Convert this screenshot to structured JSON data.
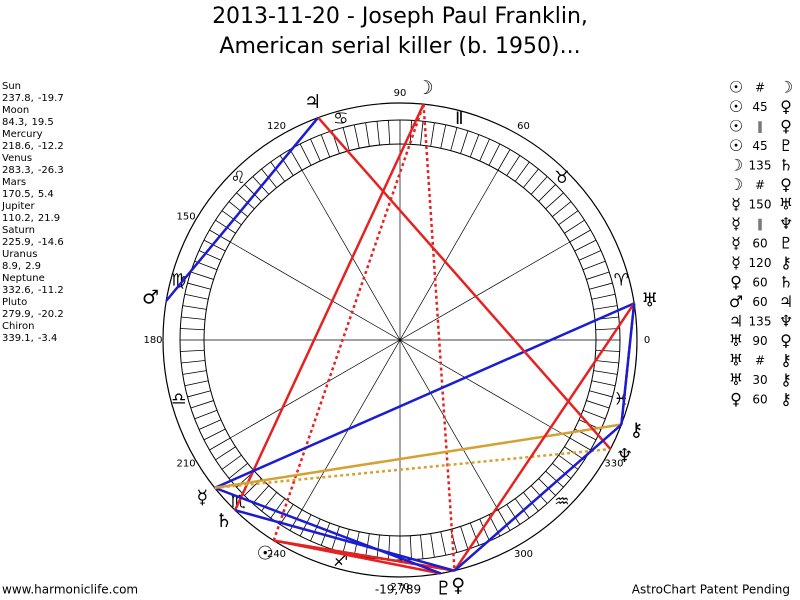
{
  "title": [
    "2013-11-20 - Joseph Paul Franklin,",
    "American serial killer (b. 1950)..."
  ],
  "planets": [
    {
      "name": "Sun",
      "glyph": "☉",
      "longitude": 237.8,
      "longitude_label": "237.8,",
      "latitude": -19.7
    },
    {
      "name": "Moon",
      "glyph": "☽",
      "longitude": 84.3,
      "longitude_label": "84.3,",
      "latitude": 19.5
    },
    {
      "name": "Mercury",
      "glyph": "☿",
      "longitude": 218.6,
      "longitude_label": "218.6,",
      "latitude": -12.2
    },
    {
      "name": "Venus",
      "glyph": "♀",
      "longitude": 283.3,
      "longitude_label": "283.3,",
      "latitude": -26.3
    },
    {
      "name": "Mars",
      "glyph": "♂",
      "longitude": 170.5,
      "longitude_label": "170.5,",
      "latitude": 5.4
    },
    {
      "name": "Jupiter",
      "glyph": "♃",
      "longitude": 110.2,
      "longitude_label": "110.2,",
      "latitude": 21.9
    },
    {
      "name": "Saturn",
      "glyph": "♄",
      "longitude": 225.9,
      "longitude_label": "225.9,",
      "latitude": -14.6
    },
    {
      "name": "Uranus",
      "glyph": "♅",
      "longitude": 8.9,
      "longitude_label": "8.9,",
      "latitude": 2.9
    },
    {
      "name": "Neptune",
      "glyph": "♆",
      "longitude": 332.6,
      "longitude_label": "332.6,",
      "latitude": -11.2
    },
    {
      "name": "Pluto",
      "glyph": "♇",
      "longitude": 279.9,
      "longitude_label": "279.9,",
      "latitude": -20.2
    },
    {
      "name": "Chiron",
      "glyph": "⚷",
      "longitude": 339.1,
      "longitude_label": "339.1,",
      "latitude": -3.4
    }
  ],
  "signs": [
    "♈",
    "♉",
    "Ⅱ",
    "♋",
    "♌",
    "♍",
    "♎",
    "♏",
    "♐",
    null,
    "♒",
    "♓"
  ],
  "degree_labels": [
    90,
    60,
    0,
    330,
    300,
    270,
    240,
    210,
    180,
    150,
    120
  ],
  "aspects": [
    {
      "p1": "☉",
      "aspect": "#",
      "p2": "☽",
      "color": "#e52222",
      "dashed": true
    },
    {
      "p1": "☉",
      "aspect": "45",
      "p2": "♀",
      "color": "#e52222",
      "dashed": false
    },
    {
      "p1": "☉",
      "aspect": "∥",
      "p2": "♀",
      "color": "#e52222",
      "dashed": true
    },
    {
      "p1": "☉",
      "aspect": "45",
      "p2": "♇",
      "color": "#e52222",
      "dashed": false
    },
    {
      "p1": "☽",
      "aspect": "135",
      "p2": "♄",
      "color": "#e52222",
      "dashed": false
    },
    {
      "p1": "☽",
      "aspect": "#",
      "p2": "♀",
      "color": "#e52222",
      "dashed": true
    },
    {
      "p1": "☿",
      "aspect": "150",
      "p2": "♅",
      "color": "#1c1cd0",
      "dashed": false
    },
    {
      "p1": "☿",
      "aspect": "∥",
      "p2": "♆",
      "color": "#d4a232",
      "dashed": true
    },
    {
      "p1": "☿",
      "aspect": "60",
      "p2": "♇",
      "color": "#1c1cd0",
      "dashed": false
    },
    {
      "p1": "☿",
      "aspect": "120",
      "p2": "⚷",
      "color": "#d4a232",
      "dashed": false
    },
    {
      "p1": "♀",
      "aspect": "60",
      "p2": "♄",
      "color": "#1c1cd0",
      "dashed": false
    },
    {
      "p1": "♂",
      "aspect": "60",
      "p2": "♃",
      "color": "#1c1cd0",
      "dashed": false
    },
    {
      "p1": "♃",
      "aspect": "135",
      "p2": "♆",
      "color": "#e52222",
      "dashed": false
    },
    {
      "p1": "♅",
      "aspect": "90",
      "p2": "♀",
      "color": "#e52222",
      "dashed": false
    },
    {
      "p1": "♅",
      "aspect": "#",
      "p2": "⚷",
      "color": "#e52222",
      "dashed": true
    },
    {
      "p1": "♅",
      "aspect": "30",
      "p2": "⚷",
      "color": "#1c1cd0",
      "dashed": false
    },
    {
      "p1": "♀",
      "aspect": "60",
      "p2": "⚷",
      "color": "#1c1cd0",
      "dashed": false
    }
  ],
  "footer": {
    "left": "www.harmoniclife.com",
    "center": "-19,789",
    "right": "AstroChart Patent Pending"
  }
}
